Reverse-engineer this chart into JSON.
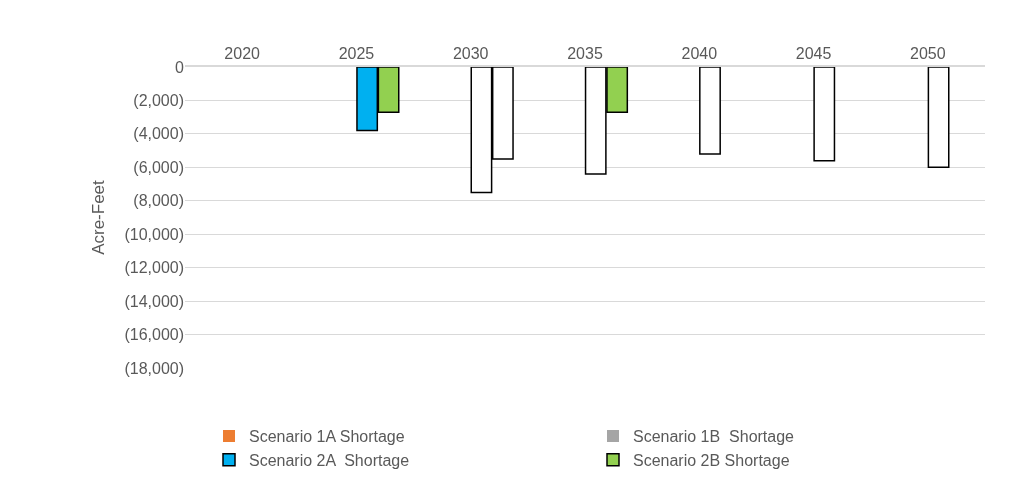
{
  "chart_data": {
    "type": "bar",
    "ylabel": "Acre-Feet",
    "categories": [
      "2020",
      "2025",
      "2030",
      "2035",
      "2040",
      "2045",
      "2050"
    ],
    "series": [
      {
        "name": "Scenario 1A Shortage",
        "color": "#ed7d31",
        "values": [
          null,
          null,
          null,
          null,
          null,
          null,
          null
        ]
      },
      {
        "name": "Scenario 1B  Shortage",
        "color": "#a5a5a5",
        "values": [
          null,
          null,
          null,
          null,
          null,
          null,
          null
        ]
      },
      {
        "name": "Scenario 2A  Shortage",
        "color": "#00b0f0",
        "colors": [
          "#00b0f0",
          "#00b0f0",
          "#ffffff",
          "#ffffff",
          "#ffffff",
          "#ffffff",
          "#ffffff"
        ],
        "values": [
          null,
          -3800,
          -7500,
          -6400,
          -5200,
          -5600,
          -6000
        ]
      },
      {
        "name": "Scenario 2B Shortage",
        "color": "#92d050",
        "colors": [
          "#92d050",
          "#92d050",
          "#ffffff",
          "#92d050",
          "#ffffff",
          "#ffffff",
          "#ffffff"
        ],
        "values": [
          null,
          -2700,
          -5500,
          -2700,
          null,
          null,
          null
        ]
      }
    ],
    "ylim": [
      -18000,
      0
    ],
    "yticks": [
      0,
      {
        "value": -2000,
        "label": "(2,000)"
      },
      {
        "value": -4000,
        "label": "(4,000)"
      },
      {
        "value": -6000,
        "label": "(6,000)"
      },
      {
        "value": -8000,
        "label": "(8,000)"
      },
      {
        "value": -10000,
        "label": "(10,000)"
      },
      {
        "value": -12000,
        "label": "(12,000)"
      },
      {
        "value": -14000,
        "label": "(14,000)"
      },
      {
        "value": -16000,
        "label": "(16,000)"
      },
      {
        "value": -18000,
        "label": "(18,000)"
      }
    ],
    "grid": "y",
    "legend": "bottom"
  }
}
